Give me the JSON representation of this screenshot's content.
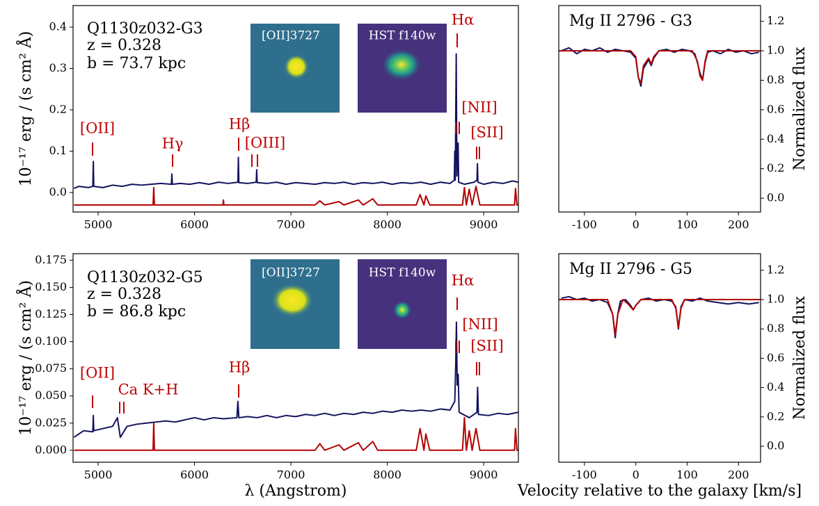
{
  "chart_data": [
    {
      "type": "line",
      "ylabel": "10⁻¹⁷ erg / (s cm² Å)",
      "annotations": [
        "Q1130z032-G3",
        "z = 0.328",
        "b = 73.7 kpc"
      ],
      "inset_labels": [
        "[OII]3727",
        "HST f140w"
      ],
      "line_labels": [
        "[OII]",
        "Hγ",
        "Hβ",
        "[OIII]",
        "Hα",
        "[NII]",
        "[SII]"
      ],
      "xlim": [
        4740,
        9360
      ],
      "xticks": [
        5000,
        6000,
        7000,
        8000,
        9000
      ],
      "ylim": [
        -0.047,
        0.452
      ],
      "yticks": [
        {
          "value": 0,
          "label": "0.0"
        },
        0.1,
        0.2,
        0.3,
        0.4
      ],
      "series": [
        {
          "color": "#12125e",
          "x": [
            4750,
            4800,
            4900,
            4945,
            4950,
            4955,
            5050,
            5150,
            5250,
            5350,
            5450,
            5550,
            5650,
            5760,
            5765,
            5770,
            5850,
            5950,
            6050,
            6150,
            6250,
            6350,
            6450,
            6455,
            6460,
            6550,
            6640,
            6645,
            6650,
            6750,
            6850,
            6950,
            7050,
            7150,
            7250,
            7350,
            7450,
            7550,
            7650,
            7750,
            7850,
            7950,
            8050,
            8150,
            8250,
            8350,
            8450,
            8550,
            8650,
            8695,
            8700,
            8705,
            8715,
            8722,
            8735,
            8740,
            8800,
            8900,
            8930,
            8935,
            8940,
            9000,
            9100,
            9200,
            9300,
            9360
          ],
          "values": [
            0.01,
            0.015,
            0.012,
            0.015,
            0.075,
            0.015,
            0.012,
            0.018,
            0.015,
            0.02,
            0.018,
            0.02,
            0.022,
            0.02,
            0.045,
            0.02,
            0.022,
            0.02,
            0.024,
            0.02,
            0.025,
            0.022,
            0.025,
            0.085,
            0.024,
            0.022,
            0.025,
            0.055,
            0.024,
            0.022,
            0.025,
            0.02,
            0.024,
            0.022,
            0.02,
            0.024,
            0.022,
            0.025,
            0.02,
            0.024,
            0.022,
            0.025,
            0.02,
            0.024,
            0.022,
            0.025,
            0.02,
            0.025,
            0.022,
            0.03,
            0.1,
            0.03,
            0.335,
            0.04,
            0.12,
            0.025,
            0.02,
            0.025,
            0.03,
            0.07,
            0.025,
            0.02,
            0.025,
            0.022,
            0.028,
            0.025
          ]
        },
        {
          "color": "#b30000",
          "x": [
            4750,
            5570,
            5577,
            5584,
            6295,
            6300,
            6305,
            7250,
            7300,
            7350,
            7500,
            7550,
            7700,
            7750,
            7850,
            7900,
            8300,
            8340,
            8380,
            8400,
            8440,
            8780,
            8800,
            8820,
            8850,
            8880,
            8920,
            8960,
            9320,
            9330,
            9345,
            9360
          ],
          "values": [
            -0.03,
            -0.03,
            0.012,
            -0.03,
            -0.03,
            -0.018,
            -0.03,
            -0.03,
            -0.02,
            -0.03,
            -0.022,
            -0.03,
            -0.018,
            -0.03,
            -0.015,
            -0.03,
            -0.03,
            -0.005,
            -0.03,
            -0.008,
            -0.03,
            -0.03,
            0.012,
            -0.03,
            0.008,
            -0.03,
            0.015,
            -0.03,
            -0.03,
            0.01,
            -0.03,
            -0.03
          ]
        }
      ]
    },
    {
      "type": "line",
      "title": "Mg II 2796 - G3",
      "ylabel": "Normalized flux",
      "xlim": [
        -150,
        243
      ],
      "xticks": [
        -100,
        0,
        100,
        200
      ],
      "ylim": [
        -0.094,
        1.307
      ],
      "yticks": [
        {
          "value": 0,
          "label": "0.0"
        },
        0.2,
        0.4,
        0.6,
        0.8,
        {
          "value": 1,
          "label": "1.0"
        },
        1.2
      ],
      "series": [
        {
          "color": "#12125e",
          "x": [
            -145,
            -130,
            -115,
            -100,
            -85,
            -70,
            -55,
            -40,
            -25,
            -10,
            0,
            5,
            10,
            15,
            25,
            30,
            35,
            45,
            60,
            75,
            90,
            105,
            115,
            120,
            125,
            130,
            135,
            140,
            150,
            165,
            180,
            195,
            210,
            225,
            240
          ],
          "values": [
            1.0,
            1.02,
            0.98,
            1.01,
            1.0,
            1.02,
            0.99,
            1.01,
            1.0,
            0.99,
            0.95,
            0.82,
            0.76,
            0.88,
            0.94,
            0.9,
            0.95,
            1.0,
            1.01,
            0.99,
            1.01,
            1.0,
            0.98,
            0.92,
            0.85,
            0.8,
            0.92,
            0.99,
            1.0,
            0.98,
            1.01,
            0.99,
            1.0,
            0.98,
            0.99
          ]
        },
        {
          "color": "#b30000",
          "x": [
            -150,
            -10,
            0,
            5,
            10,
            15,
            25,
            30,
            35,
            45,
            110,
            120,
            125,
            130,
            135,
            140,
            243
          ],
          "values": [
            1.0,
            1.0,
            0.96,
            0.82,
            0.78,
            0.9,
            0.95,
            0.91,
            0.96,
            1.0,
            1.0,
            0.93,
            0.83,
            0.8,
            0.93,
            1.0,
            1.0
          ]
        }
      ]
    },
    {
      "type": "line",
      "ylabel": "10⁻¹⁷ erg / (s cm² Å)",
      "xlabel": "λ (Angstrom)",
      "annotations": [
        "Q1130z032-G5",
        "z = 0.328",
        "b = 86.8 kpc"
      ],
      "inset_labels": [
        "[OII]3727",
        "HST f140w"
      ],
      "line_labels": [
        "[OII]",
        "Ca K+H",
        "Hβ",
        "Hα",
        "[NII]",
        "[SII]"
      ],
      "xlim": [
        4740,
        9360
      ],
      "xticks": [
        5000,
        6000,
        7000,
        8000,
        9000
      ],
      "ylim": [
        -0.011,
        0.181
      ],
      "yticks": [
        {
          "value": 0,
          "label": "0.000"
        },
        0.025,
        {
          "value": 0.05,
          "label": "0.050"
        },
        0.075,
        {
          "value": 0.1,
          "label": "0.100"
        },
        0.125,
        {
          "value": 0.15,
          "label": "0.150"
        },
        0.175
      ],
      "series": [
        {
          "color": "#12125e",
          "x": [
            4750,
            4850,
            4945,
            4950,
            4955,
            5050,
            5150,
            5200,
            5230,
            5300,
            5400,
            5500,
            5600,
            5700,
            5800,
            5900,
            6000,
            6100,
            6200,
            6300,
            6440,
            6450,
            6460,
            6550,
            6650,
            6750,
            6850,
            6950,
            7050,
            7150,
            7250,
            7350,
            7450,
            7550,
            7650,
            7750,
            7850,
            7950,
            8050,
            8150,
            8250,
            8350,
            8450,
            8550,
            8650,
            8700,
            8710,
            8717,
            8725,
            8735,
            8745,
            8850,
            8930,
            8937,
            8945,
            9050,
            9150,
            9250,
            9360
          ],
          "values": [
            0.012,
            0.018,
            0.017,
            0.032,
            0.018,
            0.02,
            0.022,
            0.03,
            0.012,
            0.022,
            0.024,
            0.025,
            0.026,
            0.027,
            0.026,
            0.028,
            0.03,
            0.028,
            0.03,
            0.029,
            0.03,
            0.045,
            0.03,
            0.031,
            0.03,
            0.032,
            0.03,
            0.032,
            0.031,
            0.033,
            0.032,
            0.034,
            0.032,
            0.034,
            0.033,
            0.035,
            0.034,
            0.036,
            0.035,
            0.037,
            0.036,
            0.037,
            0.036,
            0.038,
            0.037,
            0.045,
            0.08,
            0.118,
            0.06,
            0.07,
            0.035,
            0.03,
            0.035,
            0.058,
            0.033,
            0.032,
            0.034,
            0.033,
            0.035
          ]
        },
        {
          "color": "#b30000",
          "x": [
            4750,
            5570,
            5577,
            5584,
            7250,
            7300,
            7350,
            7500,
            7550,
            7700,
            7750,
            7850,
            7900,
            8300,
            8340,
            8380,
            8400,
            8440,
            8780,
            8800,
            8820,
            8850,
            8880,
            8920,
            8960,
            9320,
            9330,
            9345,
            9360
          ],
          "values": [
            0,
            0,
            0.025,
            0,
            0,
            0.006,
            0,
            0.005,
            0,
            0.007,
            0,
            0.008,
            0,
            0,
            0.02,
            0,
            0.015,
            0,
            0,
            0.03,
            0,
            0.018,
            0,
            0.02,
            0,
            0,
            0.02,
            0,
            0
          ]
        }
      ]
    },
    {
      "type": "line",
      "title": "Mg II 2796 - G5",
      "ylabel": "Normalized flux",
      "xlabel": "Velocity relative to the galaxy [km/s]",
      "xlim": [
        -150,
        243
      ],
      "xticks": [
        -100,
        0,
        100,
        200
      ],
      "ylim": [
        -0.109,
        1.313
      ],
      "yticks": [
        {
          "value": 0,
          "label": "0.0"
        },
        0.2,
        0.4,
        0.6,
        0.8,
        {
          "value": 1,
          "label": "1.0"
        },
        1.2
      ],
      "series": [
        {
          "color": "#12125e",
          "x": [
            -145,
            -130,
            -115,
            -100,
            -85,
            -70,
            -55,
            -45,
            -40,
            -35,
            -30,
            -20,
            -10,
            -5,
            0,
            10,
            25,
            40,
            55,
            70,
            78,
            83,
            88,
            95,
            110,
            125,
            140,
            160,
            180,
            200,
            220,
            240
          ],
          "values": [
            1.01,
            1.02,
            1.0,
            1.01,
            0.99,
            1.0,
            0.98,
            0.9,
            0.74,
            0.9,
            0.99,
            1.0,
            0.96,
            0.93,
            0.96,
            1.0,
            1.01,
            0.99,
            1.0,
            0.99,
            0.95,
            0.8,
            0.95,
            1.0,
            0.99,
            1.01,
            0.99,
            0.98,
            0.97,
            0.98,
            0.97,
            0.98
          ]
        },
        {
          "color": "#b30000",
          "x": [
            -150,
            -55,
            -45,
            -40,
            -35,
            -25,
            -15,
            -5,
            0,
            10,
            70,
            78,
            83,
            88,
            95,
            243
          ],
          "values": [
            1.0,
            1.0,
            0.9,
            0.76,
            0.9,
            1.0,
            0.97,
            0.93,
            0.96,
            1.0,
            1.0,
            0.94,
            0.81,
            0.94,
            1.0,
            1.0
          ]
        }
      ]
    }
  ]
}
